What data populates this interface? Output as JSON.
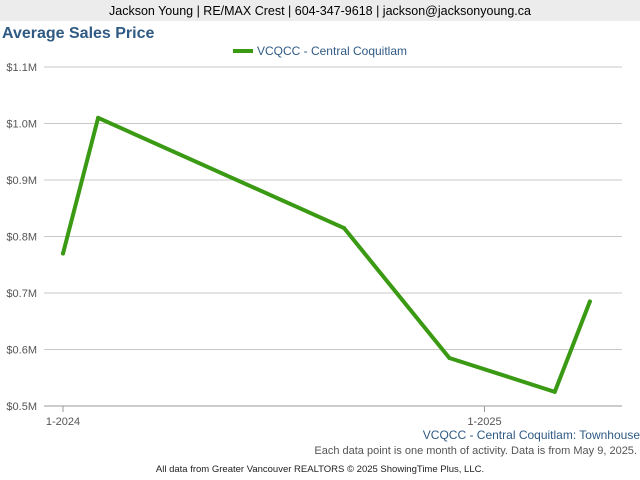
{
  "header": {
    "contact": "Jackson Young | RE/MAX Crest | 604-347-9618 | jackson@jacksonyoung.ca"
  },
  "colors": {
    "series": "#3a9a14",
    "title": "#2f5a84",
    "grid": "#c8c8c8",
    "axis_text": "#555555"
  },
  "chart_data": {
    "type": "line",
    "title": "Average Sales Price",
    "subtitle": "VCQCC - Central Coquitlam: Townhouse",
    "note": "Each data point is one month of activity. Data is from May 9, 2025.",
    "credits": "All data from Greater Vancouver REALTORS © 2025 ShowingTime Plus, LLC.",
    "legend_position": "top-center",
    "grid": true,
    "xlabel": "",
    "ylabel": "",
    "ylim": [
      0.5,
      1.1
    ],
    "y_unit": "M",
    "y_ticks": [
      {
        "value": 0.5,
        "label": "$0.5M"
      },
      {
        "value": 0.6,
        "label": "$0.6M"
      },
      {
        "value": 0.7,
        "label": "$0.7M"
      },
      {
        "value": 0.8,
        "label": "$0.8M"
      },
      {
        "value": 0.9,
        "label": "$0.9M"
      },
      {
        "value": 1.0,
        "label": "$1.0M"
      },
      {
        "value": 1.1,
        "label": "$1.1M"
      }
    ],
    "x_ticks": [
      {
        "date": "2024-01",
        "label": "1-2024"
      },
      {
        "date": "2025-01",
        "label": "1-2025"
      }
    ],
    "xlim": [
      "2024-01",
      "2025-05"
    ],
    "series": [
      {
        "name": "VCQCC - Central Coquitlam",
        "points": [
          {
            "date": "2024-01",
            "value": 0.77
          },
          {
            "date": "2024-02",
            "value": 1.01
          },
          {
            "date": "2024-09",
            "value": 0.815
          },
          {
            "date": "2024-12",
            "value": 0.585
          },
          {
            "date": "2025-03",
            "value": 0.525
          },
          {
            "date": "2025-04",
            "value": 0.685
          }
        ]
      }
    ]
  }
}
